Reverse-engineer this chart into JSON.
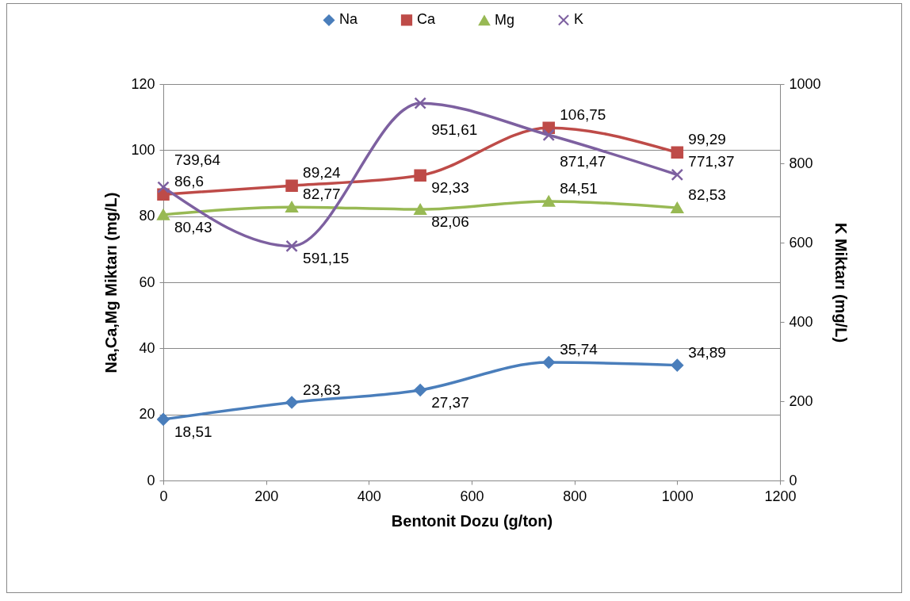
{
  "chart_data": {
    "type": "line",
    "xlabel": "Bentonit Dozu (g/ton)",
    "ylabel": "Na,Ca,Mg Miktarı (mg/L)",
    "y2label": "K Miktarı (mg/L)",
    "x": [
      0,
      250,
      500,
      750,
      1000
    ],
    "series": [
      {
        "name": "Na",
        "color": "#4a7ebb",
        "marker": "diamond",
        "values": [
          18.51,
          23.63,
          27.37,
          35.74,
          34.89
        ],
        "value_labels": [
          "18,51",
          "23,63",
          "27,37",
          "35,74",
          "34,89"
        ]
      },
      {
        "name": "Ca",
        "color": "#be4b48",
        "marker": "square",
        "values": [
          86.6,
          89.24,
          92.33,
          106.75,
          99.29
        ],
        "value_labels": [
          "86,6",
          "89,24",
          "92,33",
          "106,75",
          "99,29"
        ]
      },
      {
        "name": "Mg",
        "color": "#98b954",
        "marker": "triangle",
        "values": [
          80.43,
          82.77,
          82.06,
          84.51,
          82.53
        ],
        "value_labels": [
          "80,43",
          "82,77",
          "82,06",
          "84,51",
          "82,53"
        ]
      },
      {
        "name": "K",
        "color": "#7d60a0",
        "marker": "cross",
        "axis": "y2",
        "values": [
          739.64,
          591.15,
          951.61,
          871.47,
          771.37
        ],
        "value_labels": [
          "739,64",
          "591,15",
          "951,61",
          "871,47",
          "771,37"
        ]
      }
    ],
    "xlim": [
      0,
      1200
    ],
    "xticks": [
      0,
      200,
      400,
      600,
      800,
      1000,
      1200
    ],
    "ylim": [
      0,
      120
    ],
    "yticks": [
      0,
      20,
      40,
      60,
      80,
      100,
      120
    ],
    "y2lim": [
      0,
      1000
    ],
    "y2ticks": [
      0,
      200,
      400,
      600,
      800,
      1000
    ],
    "grid": "y",
    "legend": "top",
    "line_style": "solid"
  }
}
